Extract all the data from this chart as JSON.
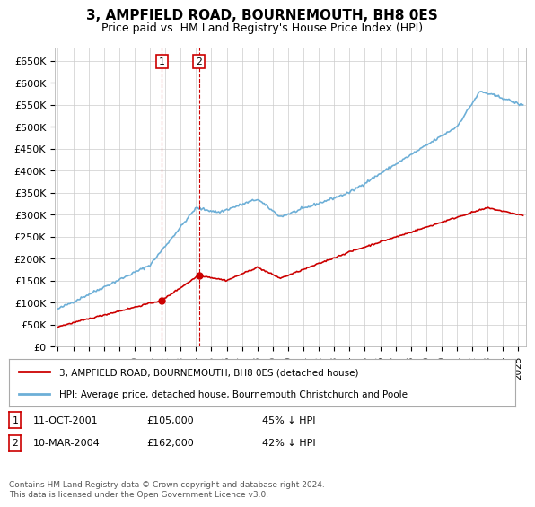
{
  "title": "3, AMPFIELD ROAD, BOURNEMOUTH, BH8 0ES",
  "subtitle": "Price paid vs. HM Land Registry's House Price Index (HPI)",
  "ylabel_ticks": [
    "£0",
    "£50K",
    "£100K",
    "£150K",
    "£200K",
    "£250K",
    "£300K",
    "£350K",
    "£400K",
    "£450K",
    "£500K",
    "£550K",
    "£600K",
    "£650K"
  ],
  "ytick_values": [
    0,
    50000,
    100000,
    150000,
    200000,
    250000,
    300000,
    350000,
    400000,
    450000,
    500000,
    550000,
    600000,
    650000
  ],
  "xlim_start": 1994.8,
  "xlim_end": 2025.5,
  "ylim_min": 0,
  "ylim_max": 680000,
  "hpi_color": "#6dafd7",
  "sale_color": "#cc0000",
  "transaction1": {
    "date_num": 2001.78,
    "price": 105000,
    "label": "1",
    "date_str": "11-OCT-2001",
    "pct": "45% ↓ HPI"
  },
  "transaction2": {
    "date_num": 2004.19,
    "price": 162000,
    "label": "2",
    "date_str": "10-MAR-2004",
    "pct": "42% ↓ HPI"
  },
  "legend_sale_label": "3, AMPFIELD ROAD, BOURNEMOUTH, BH8 0ES (detached house)",
  "legend_hpi_label": "HPI: Average price, detached house, Bournemouth Christchurch and Poole",
  "footer": "Contains HM Land Registry data © Crown copyright and database right 2024.\nThis data is licensed under the Open Government Licence v3.0.",
  "background_color": "#ffffff",
  "grid_color": "#cccccc"
}
